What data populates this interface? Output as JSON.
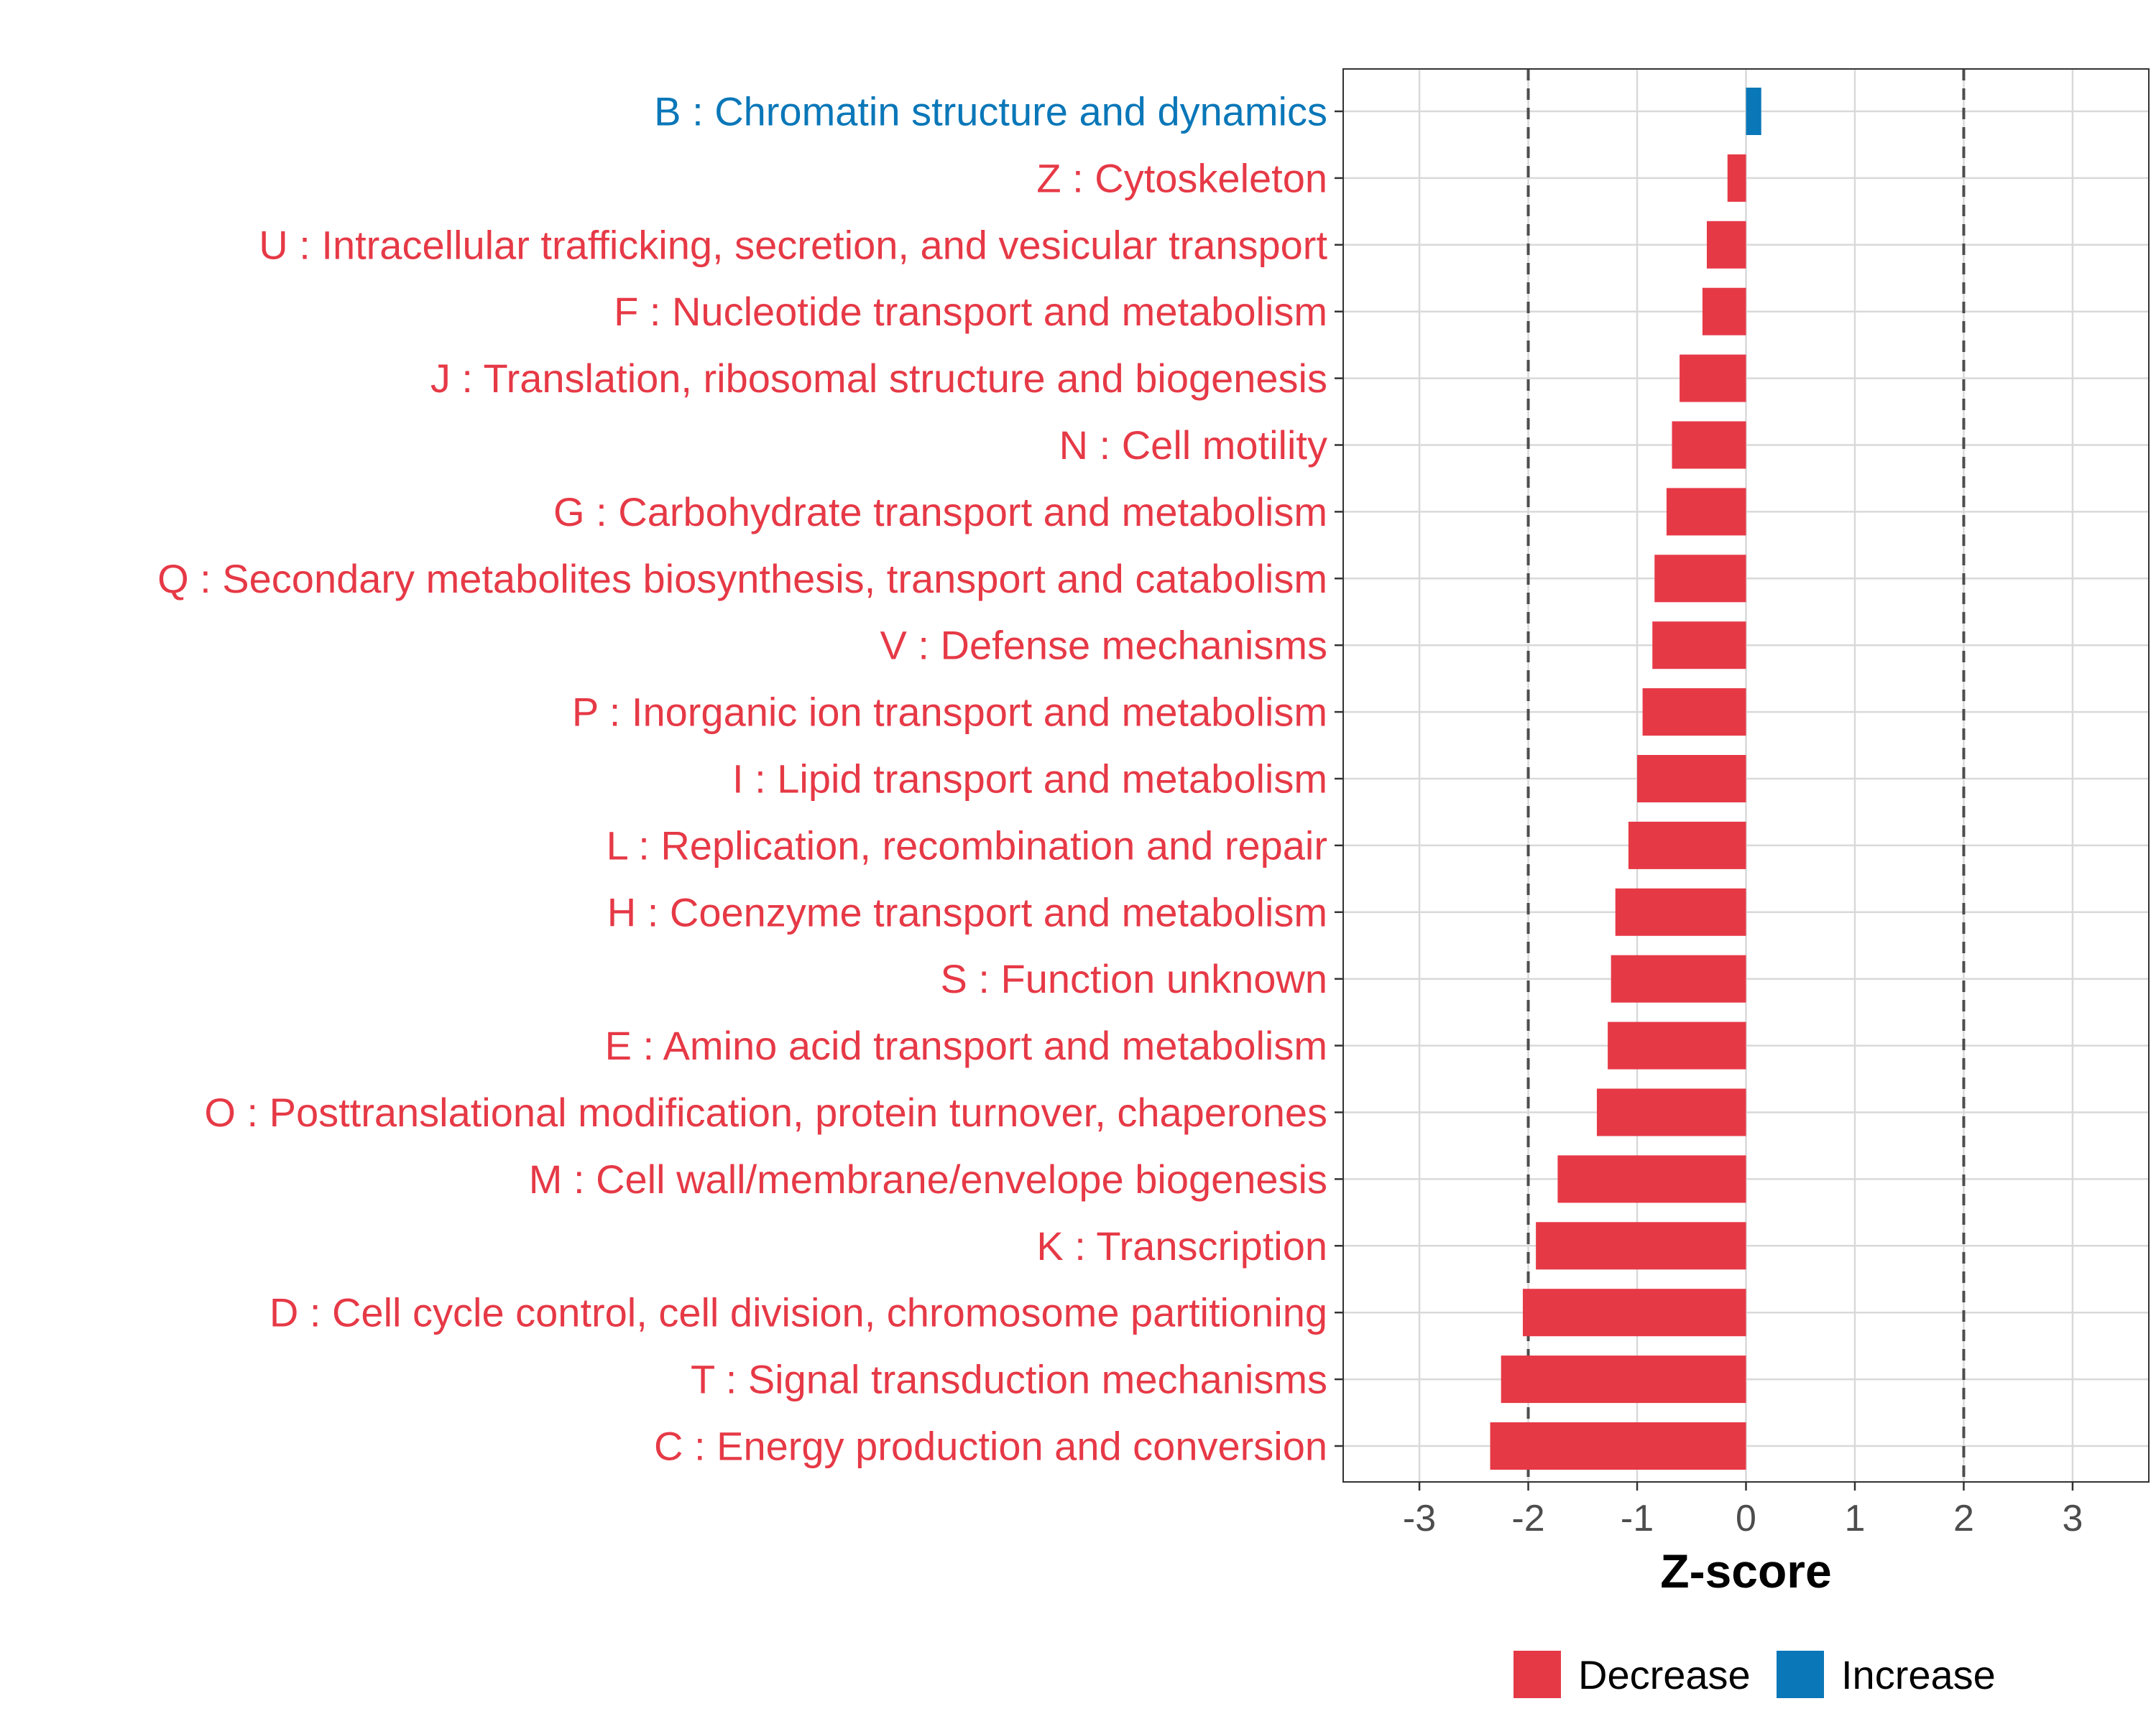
{
  "chart_data": {
    "type": "bar",
    "orientation": "horizontal",
    "xlabel": "Z-score",
    "xlim": [
      -3.7,
      3.7
    ],
    "x_ticks": [
      -3,
      -2,
      -1,
      0,
      1,
      2,
      3
    ],
    "x_tick_labels": [
      "-3",
      "-2",
      "-1",
      "0",
      "1",
      "2",
      "3"
    ],
    "reference_lines": [
      -2,
      2
    ],
    "grid": true,
    "legend_position": "bottom",
    "colors": {
      "Decrease": "#e63946",
      "Increase": "#0a77b8"
    },
    "legend": [
      {
        "key": "Decrease",
        "label": "Decrease"
      },
      {
        "key": "Increase",
        "label": "Increase"
      }
    ],
    "categories": [
      {
        "label": "B : Chromatin structure and dynamics",
        "value": 0.14,
        "group": "Increase"
      },
      {
        "label": "Z : Cytoskeleton",
        "value": -0.17,
        "group": "Decrease"
      },
      {
        "label": "U : Intracellular trafficking, secretion, and vesicular transport",
        "value": -0.36,
        "group": "Decrease"
      },
      {
        "label": "F : Nucleotide transport and metabolism",
        "value": -0.4,
        "group": "Decrease"
      },
      {
        "label": "J : Translation, ribosomal structure and biogenesis",
        "value": -0.61,
        "group": "Decrease"
      },
      {
        "label": "N : Cell motility",
        "value": -0.68,
        "group": "Decrease"
      },
      {
        "label": "G : Carbohydrate transport and metabolism",
        "value": -0.73,
        "group": "Decrease"
      },
      {
        "label": "Q : Secondary metabolites biosynthesis, transport and catabolism",
        "value": -0.84,
        "group": "Decrease"
      },
      {
        "label": "V : Defense mechanisms",
        "value": -0.86,
        "group": "Decrease"
      },
      {
        "label": "P : Inorganic ion transport and metabolism",
        "value": -0.95,
        "group": "Decrease"
      },
      {
        "label": "I : Lipid transport and metabolism",
        "value": -1.0,
        "group": "Decrease"
      },
      {
        "label": "L : Replication, recombination and repair",
        "value": -1.08,
        "group": "Decrease"
      },
      {
        "label": "H : Coenzyme transport and metabolism",
        "value": -1.2,
        "group": "Decrease"
      },
      {
        "label": "S : Function unknown",
        "value": -1.24,
        "group": "Decrease"
      },
      {
        "label": "E : Amino acid transport and metabolism",
        "value": -1.27,
        "group": "Decrease"
      },
      {
        "label": "O : Posttranslational modification, protein turnover, chaperones",
        "value": -1.37,
        "group": "Decrease"
      },
      {
        "label": "M : Cell wall/membrane/envelope biogenesis",
        "value": -1.73,
        "group": "Decrease"
      },
      {
        "label": "K : Transcription",
        "value": -1.93,
        "group": "Decrease"
      },
      {
        "label": "D : Cell cycle control, cell division, chromosome partitioning",
        "value": -2.05,
        "group": "Decrease"
      },
      {
        "label": "T : Signal transduction mechanisms",
        "value": -2.25,
        "group": "Decrease"
      },
      {
        "label": "C : Energy production and conversion",
        "value": -2.35,
        "group": "Decrease"
      }
    ]
  }
}
